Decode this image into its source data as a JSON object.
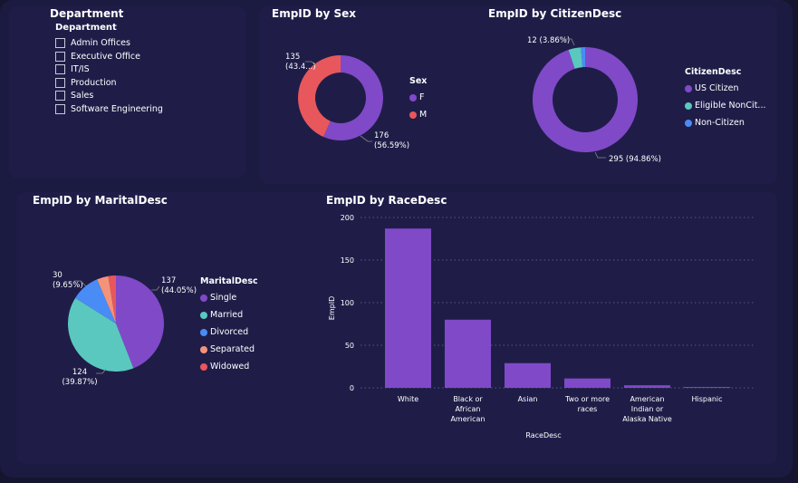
{
  "department_slicer": {
    "title": "Department",
    "header": "Department",
    "items": [
      "Admin Offices",
      "Executive Office",
      "IT/IS",
      "Production",
      "Sales",
      "Software Engineering"
    ]
  },
  "colors": {
    "purple": "#8049c8",
    "red": "#e8575b",
    "teal": "#5ac8bf",
    "blue": "#4a8cf5",
    "salmon": "#f4937a"
  },
  "chart_data": [
    {
      "type": "pie",
      "variant": "donut",
      "title": "EmpID by Sex",
      "legend_title": "Sex",
      "legend_position": "right",
      "categories": [
        "F",
        "M"
      ],
      "values": [
        176,
        135
      ],
      "labels": [
        "176\n(56.59%)",
        "135\n(43.4...)"
      ],
      "colors": [
        "#8049c8",
        "#e8575b"
      ]
    },
    {
      "type": "pie",
      "variant": "donut",
      "title": "EmpID by CitizenDesc",
      "legend_title": "CitizenDesc",
      "legend_position": "right",
      "categories": [
        "US Citizen",
        "Eligible NonCit...",
        "Non-Citizen"
      ],
      "values": [
        295,
        12,
        4
      ],
      "labels": [
        "295 (94.86%)",
        "12 (3.86%)",
        ""
      ],
      "colors": [
        "#8049c8",
        "#5ac8bf",
        "#4a8cf5"
      ]
    },
    {
      "type": "pie",
      "title": "EmpID by MaritalDesc",
      "legend_title": "MaritalDesc",
      "legend_position": "right",
      "categories": [
        "Single",
        "Married",
        "Divorced",
        "Separated",
        "Widowed"
      ],
      "values": [
        137,
        124,
        30,
        12,
        8
      ],
      "labels": [
        "137\n(44.05%)",
        "124\n(39.87%)",
        "30\n(9.65%)",
        "",
        ""
      ],
      "colors": [
        "#8049c8",
        "#5ac8bf",
        "#4a8cf5",
        "#f4937a",
        "#e8575b"
      ]
    },
    {
      "type": "bar",
      "title": "EmpID by RaceDesc",
      "xlabel": "RaceDesc",
      "ylabel": "EmpID",
      "ylim": [
        0,
        200
      ],
      "yticks": [
        0,
        50,
        100,
        150,
        200
      ],
      "grid": true,
      "categories": [
        "White",
        "Black or\nAfrican\nAmerican",
        "Asian",
        "Two or more\nraces",
        "American\nIndian or\nAlaska Native",
        "Hispanic"
      ],
      "values": [
        187,
        80,
        29,
        11,
        3,
        1
      ],
      "color": "#8049c8"
    }
  ]
}
